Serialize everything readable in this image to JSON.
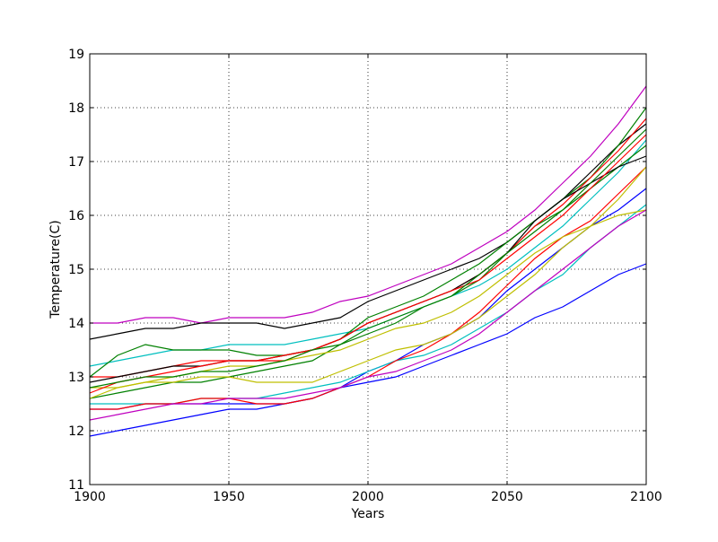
{
  "chart_data": {
    "type": "line",
    "title": "",
    "xlabel": "Years",
    "ylabel": "Temperature(C)",
    "xlim": [
      1900,
      2100
    ],
    "ylim": [
      11,
      19
    ],
    "xticks": [
      "1900",
      "1950",
      "2000",
      "2050",
      "2100"
    ],
    "yticks": [
      "11",
      "12",
      "13",
      "14",
      "15",
      "16",
      "17",
      "18",
      "19"
    ],
    "grid": true,
    "grid_style": "dotted",
    "x": [
      1900,
      1910,
      1920,
      1930,
      1940,
      1950,
      1960,
      1970,
      1980,
      1990,
      2000,
      2010,
      2020,
      2030,
      2040,
      2050,
      2060,
      2070,
      2080,
      2090,
      2100
    ],
    "series": [
      {
        "color": "#bf00bf",
        "values": [
          14.0,
          14.0,
          14.1,
          14.1,
          14.0,
          14.1,
          14.1,
          14.1,
          14.2,
          14.4,
          14.5,
          14.7,
          14.9,
          15.1,
          15.4,
          15.7,
          16.1,
          16.6,
          17.1,
          17.7,
          18.4
        ]
      },
      {
        "color": "#000000",
        "values": [
          13.7,
          13.8,
          13.9,
          13.9,
          14.0,
          14.0,
          14.0,
          13.9,
          14.0,
          14.1,
          14.4,
          14.6,
          14.8,
          15.0,
          15.2,
          15.5,
          15.9,
          16.3,
          16.8,
          17.3,
          17.7
        ]
      },
      {
        "color": "#0000ff",
        "values": [
          11.9,
          12.0,
          12.1,
          12.2,
          12.3,
          12.4,
          12.4,
          12.5,
          12.6,
          12.8,
          12.9,
          13.0,
          13.2,
          13.4,
          13.6,
          13.8,
          14.1,
          14.3,
          14.6,
          14.9,
          15.1
        ]
      },
      {
        "color": "#0000ff",
        "values": [
          12.4,
          12.4,
          12.5,
          12.5,
          12.5,
          12.5,
          12.5,
          12.5,
          12.6,
          12.8,
          13.1,
          13.3,
          13.6,
          13.8,
          14.1,
          14.6,
          15.0,
          15.4,
          15.8,
          16.1,
          16.5
        ]
      },
      {
        "color": "#00bfbf",
        "values": [
          13.2,
          13.3,
          13.4,
          13.5,
          13.5,
          13.6,
          13.6,
          13.6,
          13.7,
          13.8,
          13.9,
          14.1,
          14.3,
          14.5,
          14.7,
          15.0,
          15.4,
          15.8,
          16.3,
          16.8,
          17.4
        ]
      },
      {
        "color": "#00bfbf",
        "values": [
          12.5,
          12.5,
          12.5,
          12.5,
          12.6,
          12.6,
          12.6,
          12.7,
          12.8,
          12.9,
          13.1,
          13.3,
          13.4,
          13.6,
          13.9,
          14.2,
          14.6,
          14.9,
          15.4,
          15.8,
          16.2
        ]
      },
      {
        "color": "#008000",
        "values": [
          13.0,
          13.4,
          13.6,
          13.5,
          13.5,
          13.5,
          13.4,
          13.4,
          13.5,
          13.7,
          14.1,
          14.3,
          14.5,
          14.8,
          15.1,
          15.5,
          15.9,
          16.3,
          16.7,
          17.3,
          18.0
        ]
      },
      {
        "color": "#008000",
        "values": [
          12.6,
          12.7,
          12.8,
          12.9,
          12.9,
          13.0,
          13.1,
          13.2,
          13.3,
          13.6,
          13.9,
          14.1,
          14.3,
          14.5,
          14.8,
          15.3,
          15.8,
          16.1,
          16.5,
          16.9,
          17.3
        ]
      },
      {
        "color": "#ff0000",
        "values": [
          13.0,
          13.0,
          13.1,
          13.2,
          13.3,
          13.3,
          13.3,
          13.3,
          13.5,
          13.7,
          14.0,
          14.2,
          14.4,
          14.6,
          14.9,
          15.3,
          15.8,
          16.2,
          16.7,
          17.2,
          17.8
        ]
      },
      {
        "color": "#ff0000",
        "values": [
          12.4,
          12.4,
          12.5,
          12.5,
          12.6,
          12.6,
          12.5,
          12.5,
          12.6,
          12.8,
          13.0,
          13.3,
          13.5,
          13.8,
          14.2,
          14.7,
          15.2,
          15.6,
          15.9,
          16.4,
          16.9
        ]
      },
      {
        "color": "#bfbf00",
        "values": [
          12.8,
          12.8,
          12.9,
          12.9,
          13.0,
          13.0,
          12.9,
          12.9,
          12.9,
          13.1,
          13.3,
          13.5,
          13.6,
          13.8,
          14.1,
          14.5,
          14.9,
          15.4,
          15.8,
          16.3,
          16.9
        ]
      },
      {
        "color": "#bfbf00",
        "values": [
          12.6,
          12.8,
          12.9,
          13.0,
          13.1,
          13.2,
          13.2,
          13.3,
          13.4,
          13.5,
          13.7,
          13.9,
          14.0,
          14.2,
          14.5,
          14.9,
          15.3,
          15.6,
          15.8,
          16.0,
          16.1
        ]
      },
      {
        "color": "#bf00bf",
        "values": [
          12.2,
          12.3,
          12.4,
          12.5,
          12.5,
          12.6,
          12.6,
          12.6,
          12.7,
          12.8,
          13.0,
          13.1,
          13.3,
          13.5,
          13.8,
          14.2,
          14.6,
          15.0,
          15.4,
          15.8,
          16.1
        ]
      },
      {
        "color": "#000000",
        "values": [
          12.9,
          13.0,
          13.1,
          13.2,
          13.2,
          13.3,
          13.3,
          13.4,
          13.5,
          13.7,
          14.0,
          14.2,
          14.4,
          14.6,
          14.9,
          15.3,
          15.9,
          16.3,
          16.6,
          16.9,
          17.1
        ]
      },
      {
        "color": "#ff0000",
        "values": [
          12.7,
          12.9,
          13.0,
          13.1,
          13.2,
          13.3,
          13.3,
          13.4,
          13.5,
          13.7,
          14.0,
          14.2,
          14.4,
          14.6,
          14.8,
          15.2,
          15.6,
          16.0,
          16.5,
          17.0,
          17.5
        ]
      },
      {
        "color": "#008000",
        "values": [
          12.8,
          12.9,
          13.0,
          13.0,
          13.1,
          13.1,
          13.2,
          13.3,
          13.5,
          13.6,
          13.8,
          14.0,
          14.3,
          14.5,
          14.9,
          15.3,
          15.7,
          16.1,
          16.6,
          17.1,
          17.6
        ]
      }
    ]
  }
}
